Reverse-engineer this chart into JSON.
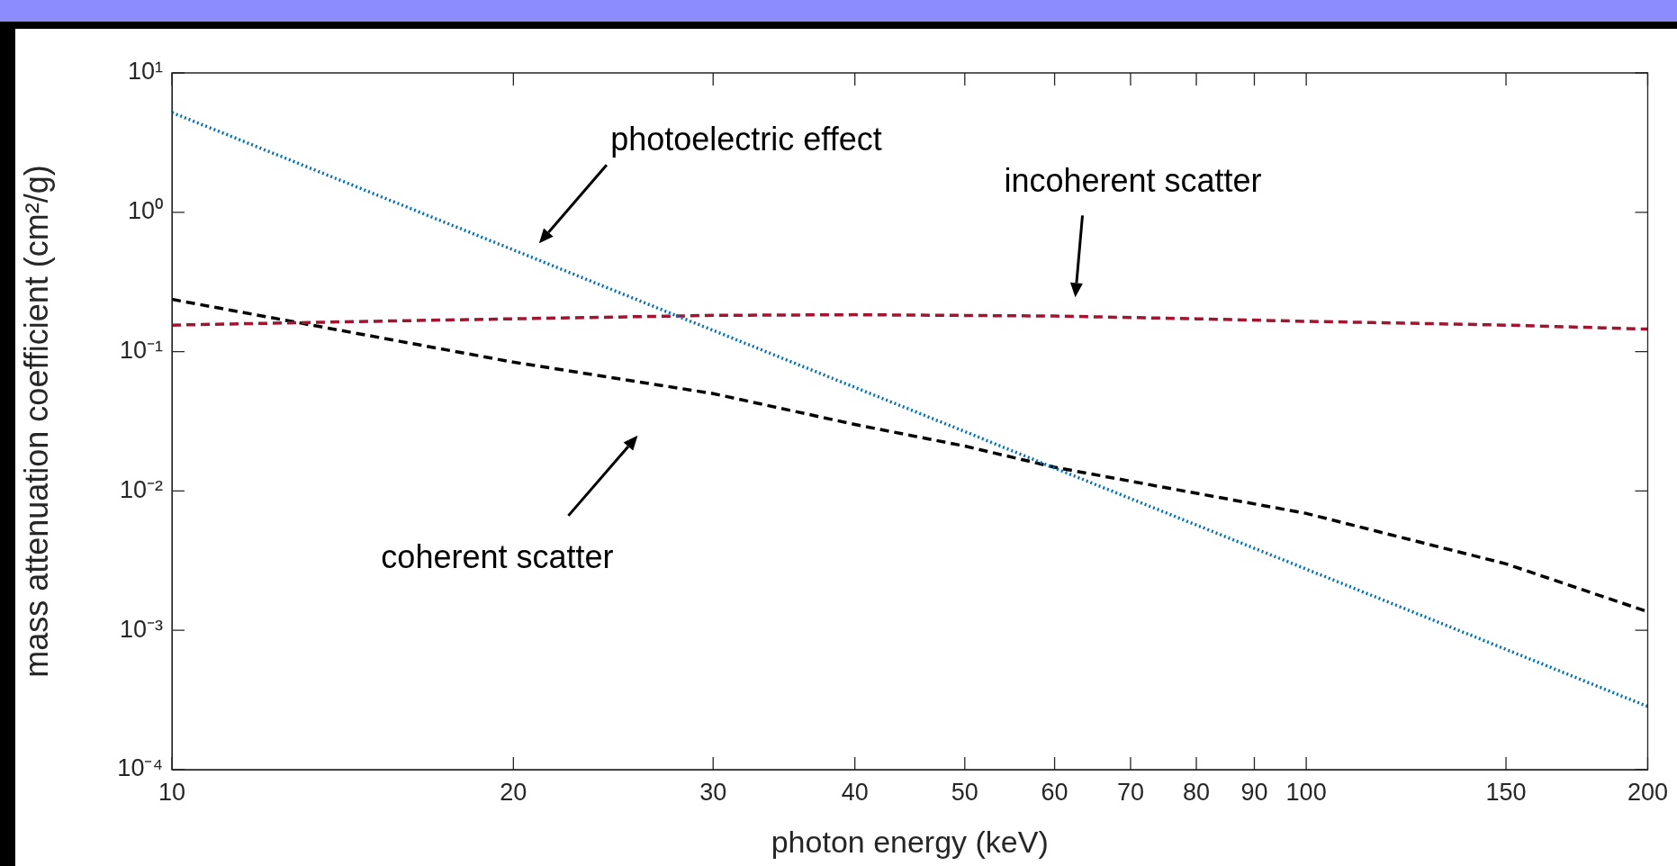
{
  "chart_data": {
    "type": "line",
    "xlabel": "photon energy (keV)",
    "ylabel": "mass attenuation coefficient (cm²/g)",
    "log": "xy",
    "xlim": [
      10,
      200
    ],
    "ylim": [
      0.0001,
      10
    ],
    "xticks": [
      10,
      20,
      30,
      40,
      50,
      60,
      70,
      80,
      90,
      100,
      150,
      200
    ],
    "yticks": [
      {
        "value": 0.0001,
        "label": "10⁻⁴"
      },
      {
        "value": 0.001,
        "label": "10⁻³"
      },
      {
        "value": 0.01,
        "label": "10⁻²"
      },
      {
        "value": 0.1,
        "label": "10⁻¹"
      },
      {
        "value": 1,
        "label": "10⁰"
      },
      {
        "value": 10,
        "label": "10¹"
      }
    ],
    "grid": false,
    "legend": false,
    "marker": "none",
    "series": [
      {
        "color": "#0072bd",
        "line_style": "dotted",
        "x": [
          10,
          20,
          30,
          50,
          60,
          100,
          150,
          200
        ],
        "values": [
          5.2,
          0.537,
          0.142,
          0.0267,
          0.0146,
          0.00275,
          0.00073,
          0.000284
        ]
      },
      {
        "color": "#a2142f",
        "line_style": "dashed",
        "x": [
          10,
          15,
          20,
          30,
          40,
          60,
          80,
          100,
          150,
          200
        ],
        "values": [
          0.155,
          0.165,
          0.172,
          0.182,
          0.184,
          0.18,
          0.172,
          0.165,
          0.155,
          0.145
        ]
      },
      {
        "color": "#000000",
        "line_style": "dashed",
        "x": [
          10,
          20,
          30,
          40,
          50,
          60,
          100,
          150,
          200
        ],
        "values": [
          0.237,
          0.084,
          0.05,
          0.03,
          0.021,
          0.0148,
          0.0069,
          0.003,
          0.00136
        ]
      }
    ],
    "annotations": [
      "photoelectric effect",
      "incoherent scatter",
      "coherent scatter"
    ]
  }
}
